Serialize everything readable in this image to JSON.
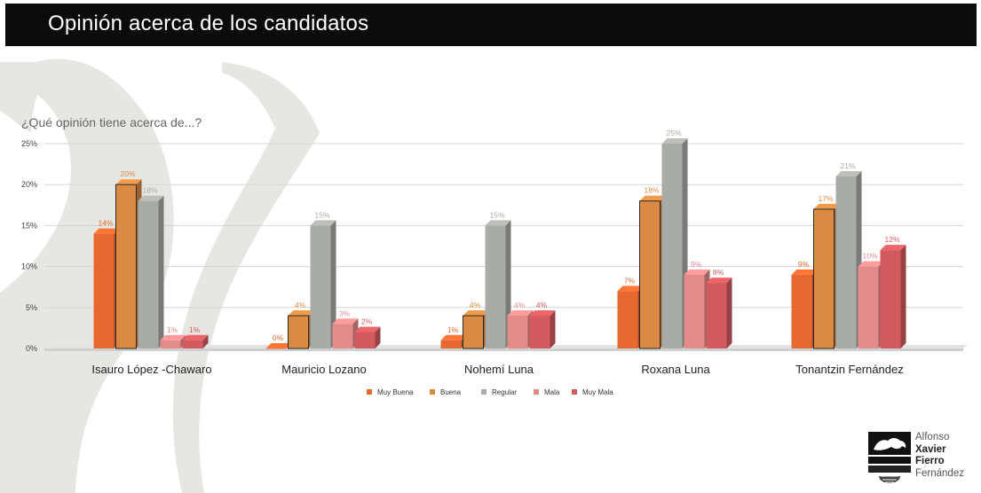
{
  "header": {
    "title": "Opinión acerca de los candidatos"
  },
  "chart_data": {
    "type": "bar",
    "title": "¿Qué opinión tiene acerca de...?",
    "xlabel": "",
    "ylabel": "",
    "categories": [
      "Isauro López -Chawaro",
      "Mauricio Lozano",
      "Nohemí Luna",
      "Roxana Luna",
      "Tonantzin Fernández"
    ],
    "series": [
      {
        "name": "Muy Buena",
        "color": "#e8692f",
        "values": [
          14,
          0,
          1,
          7,
          9
        ],
        "labels": [
          "14%",
          "0%",
          "1%",
          "7%",
          "9%"
        ]
      },
      {
        "name": "Buena",
        "color": "#d98a43",
        "values": [
          20,
          4,
          4,
          18,
          17
        ],
        "labels": [
          "20%",
          "4%",
          "4%",
          "18%",
          "17%"
        ]
      },
      {
        "name": "Regular",
        "color": "#a9aba6",
        "values": [
          18,
          15,
          15,
          25,
          21
        ],
        "labels": [
          "18%",
          "15%",
          "15%",
          "25%",
          "21%"
        ]
      },
      {
        "name": "Mala",
        "color": "#e38b8b",
        "values": [
          1,
          3,
          4,
          9,
          10
        ],
        "labels": [
          "1%",
          "3%",
          "4%",
          "9%",
          "10%"
        ]
      },
      {
        "name": "Muy Mala",
        "color": "#d35a5e",
        "values": [
          1,
          2,
          4,
          8,
          12
        ],
        "labels": [
          "1%",
          "2%",
          "4%",
          "8%",
          "12%"
        ]
      }
    ],
    "yticks": [
      "0%",
      "5%",
      "10%",
      "15%",
      "20%",
      "25%"
    ],
    "ylim": [
      0,
      25
    ],
    "grid": true,
    "legend_position": "bottom"
  },
  "logo": {
    "line1": "Alfonso",
    "line2": "Xavier",
    "line3": "Fierro",
    "line4": "Fernández"
  }
}
